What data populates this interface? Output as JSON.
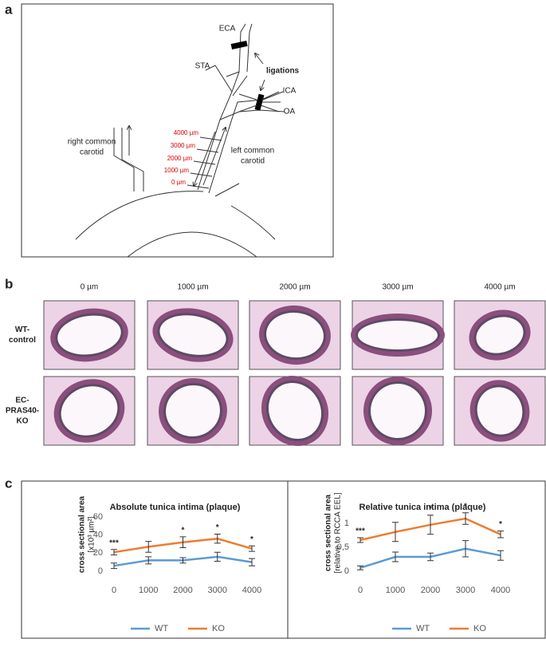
{
  "panels": [
    "a",
    "b",
    "c"
  ],
  "diagram": {
    "eca": "ECA",
    "sta": "STA",
    "ligations": "ligations",
    "ica": "ICA",
    "oa": "OA",
    "right_carotid": [
      "right common",
      "carotid"
    ],
    "left_carotid": [
      "left common",
      "carotid"
    ],
    "distances": [
      "4000 µm",
      "3000 µm",
      "2000 µm",
      "1000 µm",
      "0 µm"
    ]
  },
  "histology": {
    "columns": [
      "0 µm",
      "1000 µm",
      "2000 µm",
      "3000 µm",
      "4000 µm"
    ],
    "rows": [
      [
        "WT-",
        "control"
      ],
      [
        "EC-",
        "PRAS40-",
        "KO"
      ]
    ]
  },
  "chart_data": [
    {
      "type": "line",
      "title": "Absolute tunica intima (plaque)",
      "y_label": "cross sectional area",
      "y_unit": "[x10³ µm²]",
      "x": [
        0,
        1000,
        2000,
        3000,
        4000
      ],
      "xlim": [
        0,
        4000
      ],
      "xticks": [
        0,
        1000,
        2000,
        3000,
        4000
      ],
      "ylim": [
        0,
        60
      ],
      "yticks": [
        0,
        20,
        40,
        60
      ],
      "series": [
        {
          "name": "WT",
          "color": "#5b9bd5",
          "values": [
            6,
            12,
            12,
            16,
            10
          ],
          "errors": [
            3,
            4,
            3,
            5,
            4
          ]
        },
        {
          "name": "KO",
          "color": "#ed7d31",
          "values": [
            21,
            27,
            32,
            36,
            25
          ],
          "errors": [
            3,
            6,
            6,
            5,
            3
          ]
        }
      ],
      "annotations": [
        {
          "x": 0,
          "label": "***"
        },
        {
          "x": 2000,
          "label": "*"
        },
        {
          "x": 3000,
          "label": "*"
        },
        {
          "x": 4000,
          "label": "*"
        }
      ]
    },
    {
      "type": "line",
      "title": "Relative tunica intima (plaque)",
      "y_label": "cross sectional area",
      "y_unit": "[relative to RCCA EEL]",
      "x": [
        0,
        1000,
        2000,
        3000,
        4000
      ],
      "xlim": [
        0,
        4000
      ],
      "xticks": [
        0,
        1000,
        2000,
        3000,
        4000
      ],
      "ylim": [
        0,
        1.2
      ],
      "yticks": [
        0,
        {
          "value": 0.5,
          "label": "0,5"
        },
        1
      ],
      "series": [
        {
          "name": "WT",
          "color": "#5b9bd5",
          "values": [
            0.07,
            0.3,
            0.3,
            0.47,
            0.33
          ],
          "errors": [
            0.04,
            0.1,
            0.08,
            0.17,
            0.1
          ]
        },
        {
          "name": "KO",
          "color": "#ed7d31",
          "values": [
            0.65,
            0.82,
            0.97,
            1.1,
            0.77
          ],
          "errors": [
            0.05,
            0.2,
            0.2,
            0.12,
            0.07
          ]
        }
      ],
      "annotations": [
        {
          "x": 0,
          "label": "***"
        },
        {
          "x": 2000,
          "label": "*"
        },
        {
          "x": 3000,
          "label": "*"
        },
        {
          "x": 4000,
          "label": "*"
        }
      ]
    }
  ]
}
